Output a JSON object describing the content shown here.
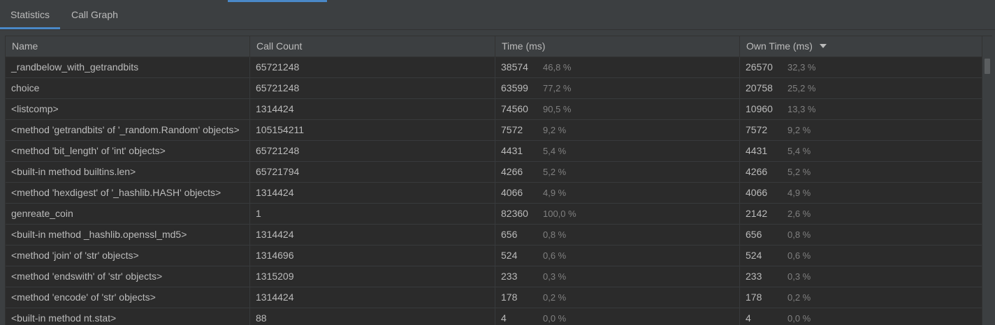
{
  "tabs": [
    {
      "label": "Statistics",
      "selected": true
    },
    {
      "label": "Call Graph",
      "selected": false
    }
  ],
  "columns": {
    "name": "Name",
    "call_count": "Call Count",
    "time": "Time (ms)",
    "own_time": "Own Time (ms)"
  },
  "sort": {
    "column": "own_time",
    "direction": "descending"
  },
  "rows": [
    {
      "name": "_randbelow_with_getrandbits",
      "call_count": "65721248",
      "time": "38574",
      "time_pct": "46,8 %",
      "own": "26570",
      "own_pct": "32,3 %"
    },
    {
      "name": "choice",
      "call_count": "65721248",
      "time": "63599",
      "time_pct": "77,2 %",
      "own": "20758",
      "own_pct": "25,2 %"
    },
    {
      "name": "<listcomp>",
      "call_count": "1314424",
      "time": "74560",
      "time_pct": "90,5 %",
      "own": "10960",
      "own_pct": "13,3 %"
    },
    {
      "name": "<method 'getrandbits' of '_random.Random' objects>",
      "call_count": "105154211",
      "time": "7572",
      "time_pct": "9,2 %",
      "own": "7572",
      "own_pct": "9,2 %"
    },
    {
      "name": "<method 'bit_length' of 'int' objects>",
      "call_count": "65721248",
      "time": "4431",
      "time_pct": "5,4 %",
      "own": "4431",
      "own_pct": "5,4 %"
    },
    {
      "name": "<built-in method builtins.len>",
      "call_count": "65721794",
      "time": "4266",
      "time_pct": "5,2 %",
      "own": "4266",
      "own_pct": "5,2 %"
    },
    {
      "name": "<method 'hexdigest' of '_hashlib.HASH' objects>",
      "call_count": "1314424",
      "time": "4066",
      "time_pct": "4,9 %",
      "own": "4066",
      "own_pct": "4,9 %"
    },
    {
      "name": "genreate_coin",
      "call_count": "1",
      "time": "82360",
      "time_pct": "100,0 %",
      "own": "2142",
      "own_pct": "2,6 %"
    },
    {
      "name": "<built-in method _hashlib.openssl_md5>",
      "call_count": "1314424",
      "time": "656",
      "time_pct": "0,8 %",
      "own": "656",
      "own_pct": "0,8 %"
    },
    {
      "name": "<method 'join' of 'str' objects>",
      "call_count": "1314696",
      "time": "524",
      "time_pct": "0,6 %",
      "own": "524",
      "own_pct": "0,6 %"
    },
    {
      "name": "<method 'endswith' of 'str' objects>",
      "call_count": "1315209",
      "time": "233",
      "time_pct": "0,3 %",
      "own": "233",
      "own_pct": "0,3 %"
    },
    {
      "name": "<method 'encode' of 'str' objects>",
      "call_count": "1314424",
      "time": "178",
      "time_pct": "0,2 %",
      "own": "178",
      "own_pct": "0,2 %"
    },
    {
      "name": "<built-in method nt.stat>",
      "call_count": "88",
      "time": "4",
      "time_pct": "0,0 %",
      "own": "4",
      "own_pct": "0,0 %"
    }
  ],
  "colors": {
    "accent": "#4a88c7",
    "panel_bg": "#3c3f41",
    "table_bg": "#2b2b2b",
    "text": "#bbbbbb",
    "muted_text": "#808080"
  }
}
